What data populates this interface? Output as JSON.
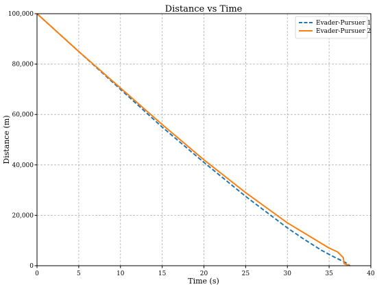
{
  "chart_data": {
    "type": "line",
    "title": "Distance vs Time",
    "xlabel": "Time (s)",
    "ylabel": "Distance (m)",
    "xlim": [
      0,
      40
    ],
    "ylim": [
      0,
      100000
    ],
    "x_ticks": [
      "0",
      "5",
      "10",
      "15",
      "20",
      "25",
      "30",
      "35",
      "40"
    ],
    "y_ticks": [
      "0",
      "20,000",
      "40,000",
      "60,000",
      "80,000",
      "100,000"
    ],
    "grid": true,
    "legend_position": "top-right",
    "series": [
      {
        "name": "Evader-Pursuer 1",
        "color": "#1f77b4",
        "style": "dashed",
        "x": [
          0,
          5,
          10,
          15,
          20,
          25,
          30,
          32,
          34,
          35,
          36,
          37,
          37.5
        ],
        "y": [
          100000,
          85000,
          70000,
          55000,
          41000,
          27500,
          15000,
          10500,
          6300,
          4500,
          2800,
          1200,
          0
        ]
      },
      {
        "name": "Evader-Pursuer 2",
        "color": "#ff7f0e",
        "style": "solid",
        "x": [
          0,
          5,
          10,
          15,
          20,
          25,
          30,
          32,
          34,
          35,
          36,
          36.7,
          36.8,
          37.5
        ],
        "y": [
          100000,
          85000,
          70500,
          56000,
          42000,
          29000,
          17000,
          13000,
          9000,
          7000,
          5500,
          3200,
          800,
          0
        ]
      }
    ]
  }
}
